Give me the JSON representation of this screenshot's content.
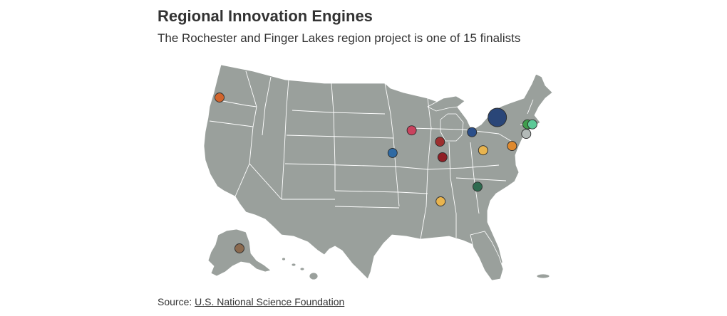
{
  "header": {
    "title": "Regional Innovation Engines",
    "subtitle": "The Rochester and Finger Lakes region project is one of 15 finalists"
  },
  "footer": {
    "source_prefix": "Source: ",
    "source_link": "U.S. National Science Foundation"
  },
  "map": {
    "region": "United States",
    "land_color": "#9aa09c",
    "border_color": "#ffffff",
    "markers": [
      {
        "lon": -122.7,
        "lat": 45.5,
        "color": "#d2642c",
        "size": "small"
      },
      {
        "lon": -91.5,
        "lat": 41.7,
        "color": "#c9435e",
        "size": "small"
      },
      {
        "lon": -86.9,
        "lat": 40.4,
        "color": "#9d2f2f",
        "size": "small"
      },
      {
        "lon": -86.5,
        "lat": 38.6,
        "color": "#8f1f25",
        "size": "small"
      },
      {
        "lon": -94.6,
        "lat": 39.1,
        "color": "#2f6aa3",
        "size": "small"
      },
      {
        "lon": -81.7,
        "lat": 41.5,
        "color": "#2b4f8a",
        "size": "small"
      },
      {
        "lon": -77.6,
        "lat": 43.2,
        "color": "#2a4678",
        "size": "large"
      },
      {
        "lon": -72.7,
        "lat": 42.4,
        "color": "#3f9d4c",
        "size": "small"
      },
      {
        "lon": -71.9,
        "lat": 42.4,
        "color": "#5cc997",
        "size": "small"
      },
      {
        "lon": -72.9,
        "lat": 41.3,
        "color": "#b3bab8",
        "size": "small"
      },
      {
        "lon": -75.2,
        "lat": 39.9,
        "color": "#e08a2e",
        "size": "small"
      },
      {
        "lon": -79.9,
        "lat": 39.4,
        "color": "#e8b44f",
        "size": "small"
      },
      {
        "lon": -80.8,
        "lat": 35.2,
        "color": "#2e6a4f",
        "size": "small"
      },
      {
        "lon": -86.8,
        "lat": 33.5,
        "color": "#e8b44f",
        "size": "small"
      },
      {
        "lon": -149.9,
        "lat": 61.2,
        "color": "#8b6a4f",
        "size": "small"
      }
    ]
  }
}
